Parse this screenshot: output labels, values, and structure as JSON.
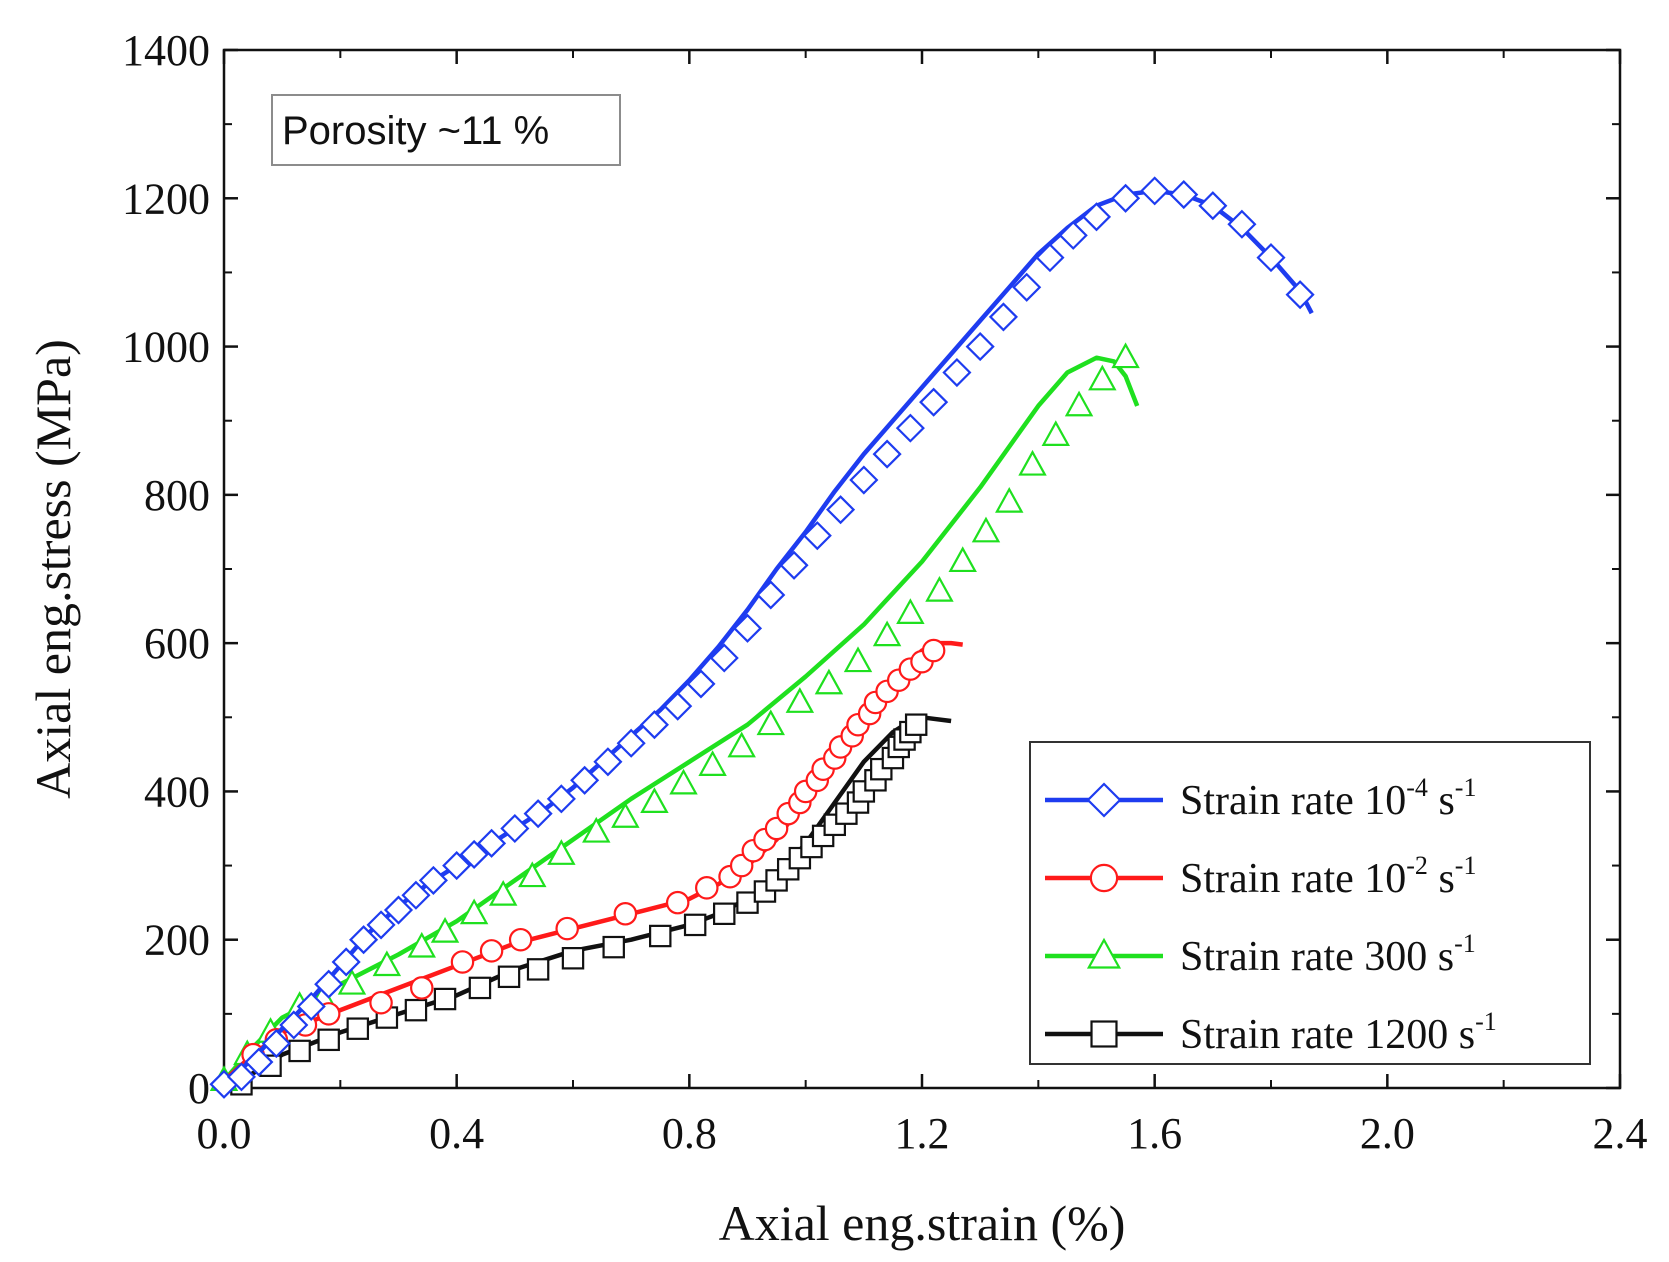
{
  "chart_data": {
    "type": "line",
    "xlabel": "Axial eng.strain (%)",
    "ylabel": "Axial eng.stress (MPa)",
    "xlim": [
      0,
      2.4
    ],
    "ylim": [
      0,
      1400
    ],
    "x_ticks": [
      0.0,
      0.4,
      0.8,
      1.2,
      1.6,
      2.0,
      2.4
    ],
    "x_tick_labels": [
      "0.0",
      "0.4",
      "0.8",
      "1.2",
      "1.6",
      "2.0",
      "2.4"
    ],
    "y_ticks": [
      0,
      200,
      400,
      600,
      800,
      1000,
      1200,
      1400
    ],
    "y_tick_labels": [
      "0",
      "200",
      "400",
      "600",
      "800",
      "1000",
      "1200",
      "1400"
    ],
    "annotation": "Porosity ~11 %",
    "legend_position": "bottom-right",
    "series": [
      {
        "name": "Strain rate 10-4 s-1",
        "legend_prefix": "Strain rate 10",
        "legend_exp1": "-4",
        "legend_mid": " s",
        "legend_exp2": "-1",
        "color": "#1e3cf0",
        "marker": "diamond",
        "x": [
          0.0,
          0.05,
          0.1,
          0.15,
          0.2,
          0.25,
          0.3,
          0.35,
          0.4,
          0.45,
          0.5,
          0.55,
          0.6,
          0.65,
          0.7,
          0.75,
          0.8,
          0.85,
          0.9,
          0.95,
          1.0,
          1.05,
          1.1,
          1.15,
          1.2,
          1.25,
          1.3,
          1.35,
          1.4,
          1.45,
          1.5,
          1.55,
          1.6,
          1.65,
          1.7,
          1.75,
          1.8,
          1.85,
          1.87
        ],
        "y": [
          5,
          40,
          80,
          120,
          165,
          210,
          245,
          275,
          300,
          325,
          350,
          375,
          405,
          440,
          475,
          510,
          550,
          595,
          645,
          700,
          750,
          805,
          855,
          900,
          945,
          990,
          1035,
          1080,
          1125,
          1160,
          1190,
          1205,
          1210,
          1205,
          1190,
          1160,
          1120,
          1075,
          1045
        ],
        "markers_x": [
          0.0,
          0.03,
          0.06,
          0.09,
          0.12,
          0.15,
          0.18,
          0.21,
          0.24,
          0.27,
          0.3,
          0.33,
          0.36,
          0.4,
          0.43,
          0.46,
          0.5,
          0.54,
          0.58,
          0.62,
          0.66,
          0.7,
          0.74,
          0.78,
          0.82,
          0.86,
          0.9,
          0.94,
          0.98,
          1.02,
          1.06,
          1.1,
          1.14,
          1.18,
          1.22,
          1.26,
          1.3,
          1.34,
          1.38,
          1.42,
          1.46,
          1.5,
          1.55,
          1.6,
          1.65,
          1.7,
          1.75,
          1.8,
          1.85
        ],
        "markers_y": [
          5,
          15,
          35,
          60,
          85,
          110,
          140,
          170,
          200,
          220,
          240,
          260,
          280,
          300,
          315,
          330,
          350,
          370,
          390,
          415,
          440,
          465,
          490,
          515,
          545,
          580,
          620,
          665,
          705,
          745,
          780,
          820,
          855,
          890,
          925,
          965,
          1000,
          1040,
          1080,
          1120,
          1150,
          1175,
          1200,
          1210,
          1205,
          1190,
          1165,
          1120,
          1070
        ]
      },
      {
        "name": "Strain rate 10-2 s-1",
        "legend_prefix": "Strain rate 10",
        "legend_exp1": "-2",
        "legend_mid": "  s",
        "legend_exp2": "-1",
        "color": "#ff1a1a",
        "marker": "circle",
        "x": [
          0.0,
          0.05,
          0.1,
          0.2,
          0.3,
          0.4,
          0.5,
          0.6,
          0.7,
          0.8,
          0.85,
          0.9,
          0.95,
          1.0,
          1.05,
          1.1,
          1.15,
          1.2,
          1.23,
          1.25,
          1.27
        ],
        "y": [
          10,
          45,
          75,
          105,
          135,
          165,
          195,
          215,
          235,
          255,
          275,
          300,
          335,
          390,
          450,
          510,
          555,
          590,
          600,
          600,
          598
        ],
        "markers_x": [
          0.05,
          0.09,
          0.14,
          0.18,
          0.27,
          0.34,
          0.41,
          0.46,
          0.51,
          0.59,
          0.69,
          0.78,
          0.83,
          0.87,
          0.89,
          0.91,
          0.93,
          0.95,
          0.97,
          0.99,
          1.0,
          1.02,
          1.03,
          1.05,
          1.06,
          1.08,
          1.09,
          1.11,
          1.12,
          1.14,
          1.16,
          1.18,
          1.2,
          1.22
        ],
        "markers_y": [
          45,
          65,
          85,
          100,
          115,
          135,
          170,
          185,
          200,
          215,
          235,
          250,
          270,
          285,
          300,
          320,
          335,
          350,
          370,
          385,
          400,
          415,
          430,
          445,
          460,
          475,
          490,
          505,
          520,
          535,
          550,
          565,
          575,
          590
        ]
      },
      {
        "name": "Strain rate 300 s-1",
        "legend_prefix": "Strain rate 300 s",
        "legend_exp1": "",
        "legend_mid": "",
        "legend_exp2": "-1",
        "color": "#1fe01f",
        "marker": "triangle",
        "x": [
          0.0,
          0.05,
          0.1,
          0.15,
          0.2,
          0.3,
          0.4,
          0.5,
          0.6,
          0.7,
          0.8,
          0.9,
          1.0,
          1.1,
          1.2,
          1.3,
          1.4,
          1.45,
          1.5,
          1.53,
          1.55,
          1.57
        ],
        "y": [
          10,
          55,
          95,
          115,
          140,
          180,
          225,
          280,
          335,
          390,
          440,
          490,
          555,
          625,
          710,
          810,
          920,
          965,
          985,
          980,
          960,
          920
        ],
        "markers_x": [
          0.0,
          0.04,
          0.08,
          0.13,
          0.17,
          0.22,
          0.28,
          0.34,
          0.38,
          0.43,
          0.48,
          0.53,
          0.58,
          0.64,
          0.69,
          0.74,
          0.79,
          0.84,
          0.89,
          0.94,
          0.99,
          1.04,
          1.09,
          1.14,
          1.18,
          1.23,
          1.27,
          1.31,
          1.35,
          1.39,
          1.43,
          1.47,
          1.51,
          1.55
        ],
        "markers_y": [
          10,
          45,
          75,
          110,
          120,
          140,
          165,
          190,
          210,
          235,
          260,
          285,
          315,
          345,
          365,
          385,
          410,
          435,
          460,
          490,
          520,
          545,
          575,
          610,
          640,
          670,
          710,
          750,
          790,
          840,
          880,
          920,
          955,
          985
        ]
      },
      {
        "name": "Strain rate 1200 s-1",
        "legend_prefix": "Strain rate 1200 s",
        "legend_exp1": "",
        "legend_mid": "",
        "legend_exp2": "-1",
        "color": "#111111",
        "marker": "square",
        "x": [
          0.0,
          0.05,
          0.1,
          0.2,
          0.3,
          0.4,
          0.5,
          0.6,
          0.7,
          0.8,
          0.85,
          0.9,
          0.95,
          1.0,
          1.05,
          1.1,
          1.15,
          1.18,
          1.2,
          1.22,
          1.25
        ],
        "y": [
          0,
          20,
          45,
          75,
          100,
          125,
          160,
          185,
          200,
          220,
          235,
          255,
          285,
          330,
          385,
          440,
          480,
          495,
          500,
          498,
          495
        ],
        "markers_x": [
          0.03,
          0.08,
          0.13,
          0.18,
          0.23,
          0.28,
          0.33,
          0.38,
          0.44,
          0.49,
          0.54,
          0.6,
          0.67,
          0.75,
          0.81,
          0.86,
          0.9,
          0.93,
          0.95,
          0.97,
          0.99,
          1.01,
          1.03,
          1.05,
          1.07,
          1.09,
          1.1,
          1.12,
          1.13,
          1.15,
          1.16,
          1.17,
          1.18,
          1.19
        ],
        "markers_y": [
          5,
          30,
          50,
          65,
          80,
          95,
          105,
          120,
          135,
          150,
          160,
          175,
          190,
          205,
          220,
          235,
          250,
          265,
          280,
          295,
          310,
          325,
          340,
          355,
          370,
          385,
          400,
          415,
          430,
          445,
          460,
          470,
          480,
          490
        ]
      }
    ]
  }
}
